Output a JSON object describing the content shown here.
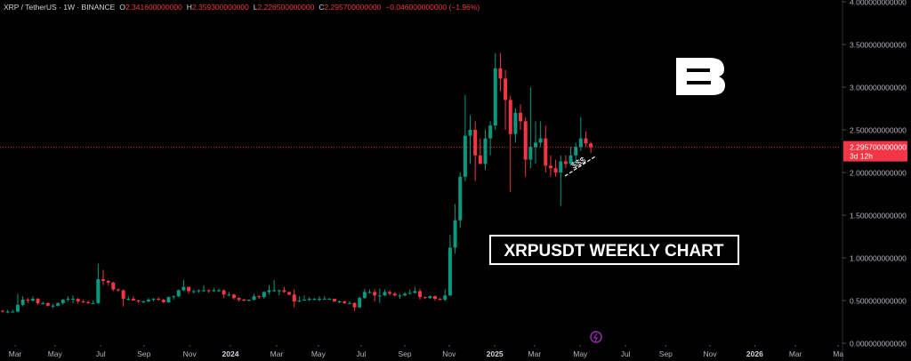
{
  "header": {
    "symbol": "XRP / TetherUS · 1W · BINANCE",
    "items": [
      {
        "key": "O",
        "value": "2.341600000000"
      },
      {
        "key": "H",
        "value": "2.359300000000"
      },
      {
        "key": "L",
        "value": "2.226500000000"
      },
      {
        "key": "C",
        "value": "2.295700000000"
      }
    ],
    "change": "−0.046000000000 (−1.96%)"
  },
  "chart_data": {
    "type": "candlestick",
    "annotation": "XRPUSDT WEEKLY CHART",
    "note": "$$$",
    "up_color": "#089981",
    "down_color": "#f23645",
    "x": [
      0,
      1,
      2,
      3,
      4,
      5,
      6,
      7,
      8,
      9,
      10,
      11,
      12,
      13,
      14,
      15,
      16,
      17,
      18,
      19,
      20,
      21,
      22,
      23,
      24,
      25,
      26,
      27,
      28,
      29,
      30,
      31,
      32,
      33,
      34,
      35,
      36,
      37,
      38,
      39,
      40,
      41,
      42,
      43,
      44,
      45,
      46,
      47,
      48,
      49,
      50,
      51,
      52,
      53,
      54,
      55,
      56,
      57,
      58,
      59,
      60,
      61,
      62,
      63,
      64,
      65,
      66,
      67,
      68,
      69,
      70,
      71,
      72,
      73,
      74,
      75,
      76,
      77,
      78,
      79,
      80,
      81,
      82,
      83,
      84,
      85,
      86,
      87,
      88,
      89,
      90,
      91,
      92,
      93,
      94,
      95,
      96,
      97,
      98,
      99,
      100,
      101,
      102,
      103,
      104,
      105,
      106,
      107,
      108,
      109,
      110,
      111,
      112,
      113,
      114,
      115,
      116,
      117
    ],
    "open": [
      0.38,
      0.37,
      0.37,
      0.37,
      0.45,
      0.51,
      0.5,
      0.52,
      0.47,
      0.47,
      0.44,
      0.44,
      0.47,
      0.51,
      0.52,
      0.52,
      0.49,
      0.48,
      0.47,
      0.47,
      0.75,
      0.73,
      0.71,
      0.63,
      0.62,
      0.52,
      0.52,
      0.5,
      0.49,
      0.49,
      0.51,
      0.52,
      0.51,
      0.48,
      0.54,
      0.55,
      0.62,
      0.66,
      0.61,
      0.61,
      0.62,
      0.62,
      0.61,
      0.62,
      0.62,
      0.57,
      0.57,
      0.53,
      0.51,
      0.5,
      0.51,
      0.55,
      0.54,
      0.6,
      0.62,
      0.62,
      0.62,
      0.6,
      0.57,
      0.49,
      0.5,
      0.51,
      0.52,
      0.52,
      0.52,
      0.52,
      0.52,
      0.49,
      0.49,
      0.47,
      0.47,
      0.42,
      0.53,
      0.6,
      0.6,
      0.56,
      0.56,
      0.6,
      0.58,
      0.56,
      0.56,
      0.58,
      0.59,
      0.61,
      0.54,
      0.53,
      0.55,
      0.52,
      0.51,
      0.56,
      1.12,
      1.44,
      1.95,
      2.43,
      2.5,
      2.2,
      2.1,
      2.4,
      2.55,
      3.22,
      3.1,
      2.85,
      2.45,
      2.7,
      2.6,
      2.15,
      2.3,
      2.35,
      2.4,
      2.08,
      2.05,
      2.0,
      2.13,
      2.1,
      2.2,
      2.3,
      2.4,
      2.3416
    ],
    "high": [
      0.39,
      0.39,
      0.39,
      0.58,
      0.55,
      0.53,
      0.55,
      0.53,
      0.49,
      0.48,
      0.46,
      0.48,
      0.52,
      0.55,
      0.56,
      0.53,
      0.51,
      0.5,
      0.5,
      0.93,
      0.86,
      0.74,
      0.72,
      0.64,
      0.63,
      0.55,
      0.55,
      0.51,
      0.5,
      0.53,
      0.53,
      0.54,
      0.52,
      0.55,
      0.56,
      0.63,
      0.74,
      0.66,
      0.63,
      0.63,
      0.68,
      0.63,
      0.65,
      0.64,
      0.63,
      0.6,
      0.58,
      0.54,
      0.52,
      0.51,
      0.58,
      0.56,
      0.61,
      0.68,
      0.74,
      0.63,
      0.66,
      0.6,
      0.63,
      0.55,
      0.56,
      0.54,
      0.53,
      0.55,
      0.55,
      0.53,
      0.52,
      0.5,
      0.5,
      0.49,
      0.48,
      0.55,
      0.64,
      0.63,
      0.63,
      0.64,
      0.63,
      0.62,
      0.6,
      0.58,
      0.6,
      0.63,
      0.66,
      0.64,
      0.55,
      0.56,
      0.56,
      0.53,
      0.63,
      1.27,
      1.63,
      2.0,
      2.91,
      2.67,
      2.6,
      2.4,
      2.5,
      2.6,
      3.4,
      3.4,
      3.2,
      2.9,
      2.75,
      2.8,
      2.65,
      3.0,
      2.6,
      2.6,
      2.55,
      2.2,
      2.15,
      2.2,
      2.2,
      2.3,
      2.35,
      2.65,
      2.48,
      2.3593
    ],
    "low": [
      0.36,
      0.35,
      0.36,
      0.36,
      0.43,
      0.47,
      0.49,
      0.45,
      0.45,
      0.43,
      0.41,
      0.43,
      0.45,
      0.49,
      0.47,
      0.46,
      0.47,
      0.46,
      0.46,
      0.46,
      0.68,
      0.68,
      0.61,
      0.6,
      0.43,
      0.5,
      0.5,
      0.47,
      0.47,
      0.48,
      0.49,
      0.5,
      0.47,
      0.47,
      0.51,
      0.54,
      0.61,
      0.58,
      0.58,
      0.59,
      0.6,
      0.59,
      0.6,
      0.6,
      0.53,
      0.55,
      0.51,
      0.49,
      0.49,
      0.49,
      0.5,
      0.52,
      0.52,
      0.57,
      0.6,
      0.56,
      0.59,
      0.56,
      0.42,
      0.48,
      0.5,
      0.49,
      0.5,
      0.49,
      0.51,
      0.51,
      0.48,
      0.47,
      0.46,
      0.46,
      0.38,
      0.41,
      0.52,
      0.58,
      0.49,
      0.47,
      0.55,
      0.56,
      0.55,
      0.52,
      0.55,
      0.57,
      0.58,
      0.51,
      0.52,
      0.52,
      0.5,
      0.5,
      0.49,
      0.55,
      1.05,
      1.35,
      1.9,
      2.1,
      1.9,
      2.1,
      2.03,
      2.2,
      2.5,
      2.95,
      2.5,
      1.77,
      2.35,
      2.5,
      1.95,
      2.05,
      2.1,
      2.3,
      2.0,
      1.95,
      1.95,
      1.61,
      2.05,
      2.08,
      2.1,
      2.25,
      2.3,
      2.2265
    ],
    "close": [
      0.37,
      0.37,
      0.37,
      0.45,
      0.51,
      0.5,
      0.52,
      0.47,
      0.47,
      0.44,
      0.44,
      0.47,
      0.51,
      0.52,
      0.52,
      0.49,
      0.48,
      0.47,
      0.47,
      0.75,
      0.73,
      0.71,
      0.63,
      0.62,
      0.52,
      0.52,
      0.5,
      0.49,
      0.49,
      0.51,
      0.52,
      0.51,
      0.48,
      0.54,
      0.55,
      0.62,
      0.66,
      0.61,
      0.61,
      0.62,
      0.62,
      0.61,
      0.62,
      0.62,
      0.57,
      0.57,
      0.53,
      0.51,
      0.5,
      0.51,
      0.55,
      0.54,
      0.6,
      0.62,
      0.62,
      0.62,
      0.6,
      0.57,
      0.49,
      0.5,
      0.51,
      0.52,
      0.52,
      0.52,
      0.52,
      0.52,
      0.49,
      0.49,
      0.47,
      0.47,
      0.42,
      0.53,
      0.6,
      0.6,
      0.56,
      0.56,
      0.6,
      0.58,
      0.56,
      0.56,
      0.58,
      0.59,
      0.61,
      0.54,
      0.53,
      0.55,
      0.52,
      0.51,
      0.56,
      1.12,
      1.44,
      1.95,
      2.43,
      2.5,
      2.2,
      2.1,
      2.4,
      2.55,
      3.22,
      3.1,
      2.85,
      2.45,
      2.7,
      2.6,
      2.15,
      2.3,
      2.35,
      2.4,
      2.08,
      2.05,
      2.0,
      2.13,
      2.1,
      2.2,
      2.3,
      2.4,
      2.34,
      2.2957
    ],
    "last_price": {
      "value": 2.2957,
      "label": "2.295700000000"
    },
    "countdown": "3d 12h",
    "xlim": [
      -0.53,
      166.7
    ],
    "xticks": [
      {
        "value": 2.5,
        "label": "Mar"
      },
      {
        "value": 10.4,
        "label": "May"
      },
      {
        "value": 19.5,
        "label": "Jul"
      },
      {
        "value": 28.1,
        "label": "Sep"
      },
      {
        "value": 37.2,
        "label": "Nov"
      },
      {
        "value": 45.3,
        "label": "2024"
      },
      {
        "value": 54.5,
        "label": "Mar"
      },
      {
        "value": 62.8,
        "label": "May"
      },
      {
        "value": 71.3,
        "label": "Jul"
      },
      {
        "value": 80,
        "label": "Sep"
      },
      {
        "value": 88.8,
        "label": "Nov"
      },
      {
        "value": 97.9,
        "label": "2025"
      },
      {
        "value": 105.8,
        "label": "Mar"
      },
      {
        "value": 114.9,
        "label": "May"
      },
      {
        "value": 123.9,
        "label": "Jul"
      },
      {
        "value": 131.9,
        "label": "Sep"
      },
      {
        "value": 140.7,
        "label": "Nov"
      },
      {
        "value": 149.6,
        "label": "2026"
      },
      {
        "value": 157.7,
        "label": "Mar"
      },
      {
        "value": 166.2,
        "label": "Ma"
      }
    ],
    "ylim": [
      0,
      4
    ],
    "yticks": [
      {
        "value": 0,
        "label": "0.000000000000"
      },
      {
        "value": 0.5,
        "label": "0.500000000000"
      },
      {
        "value": 1,
        "label": "1.000000000000"
      },
      {
        "value": 1.5,
        "label": "1.500000000000"
      },
      {
        "value": 2,
        "label": "2.000000000000"
      },
      {
        "value": 2.5,
        "label": "2.500000000000"
      },
      {
        "value": 3,
        "label": "3.000000000000"
      },
      {
        "value": 3.5,
        "label": "3.500000000000"
      },
      {
        "value": 4,
        "label": "4.000000000000"
      }
    ]
  }
}
